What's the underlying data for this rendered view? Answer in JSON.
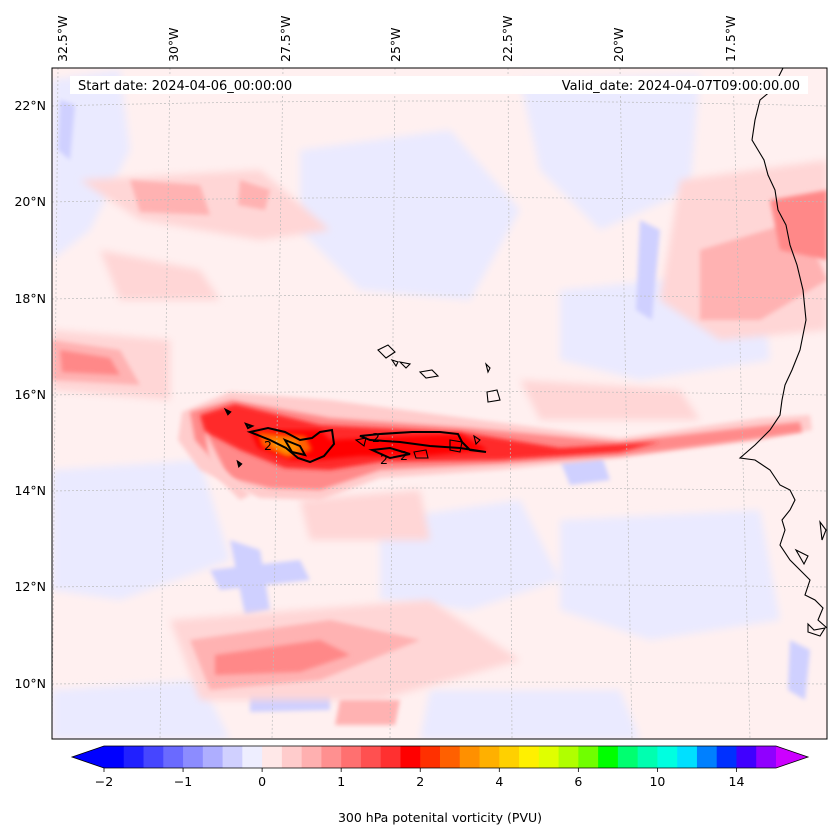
{
  "header": {
    "start_date": "Start date: 2024-04-06_00:00:00",
    "valid_date": "Valid_date: 2024-04-07T09:00:00.00"
  },
  "map": {
    "lon_labels": [
      "32.5°W",
      "30°W",
      "27.5°W",
      "25°W",
      "22.5°W",
      "20°W",
      "17.5°W"
    ],
    "lat_labels": [
      "22°N",
      "20°N",
      "18°N",
      "16°N",
      "14°N",
      "12°N",
      "10°N"
    ],
    "contour_labels": [
      "2",
      "2",
      "2",
      "2"
    ],
    "colors": {
      "land_outline": "#000000",
      "grid": "#bbbbbb",
      "background": "#fff0f0"
    }
  },
  "colorbar": {
    "label": "300 hPa potenital vorticity (PVU)",
    "ticks": [
      "−2",
      "−1",
      "0",
      "1",
      "2",
      "4",
      "6",
      "10",
      "14"
    ],
    "tick_values": [
      -2,
      -1,
      0,
      1,
      2,
      4,
      6,
      10,
      14
    ],
    "colors": [
      "#0000ff",
      "#2020ff",
      "#4646ff",
      "#6a6aff",
      "#8c8cff",
      "#aeaeff",
      "#d0d0ff",
      "#eeeeff",
      "#ffe8e8",
      "#ffcccc",
      "#ffb0b0",
      "#ff9090",
      "#ff7070",
      "#ff5050",
      "#ff3030",
      "#ff0000",
      "#ff3000",
      "#ff6000",
      "#ff9000",
      "#ffb000",
      "#ffd000",
      "#fff000",
      "#e0ff00",
      "#b0ff00",
      "#70ff00",
      "#00ff00",
      "#00ff70",
      "#00ffb0",
      "#00ffe0",
      "#00e0ff",
      "#0080ff",
      "#0030ff",
      "#4000ff",
      "#9000ff"
    ],
    "extend_low": "#0000ff",
    "extend_high": "#cc00ff"
  }
}
